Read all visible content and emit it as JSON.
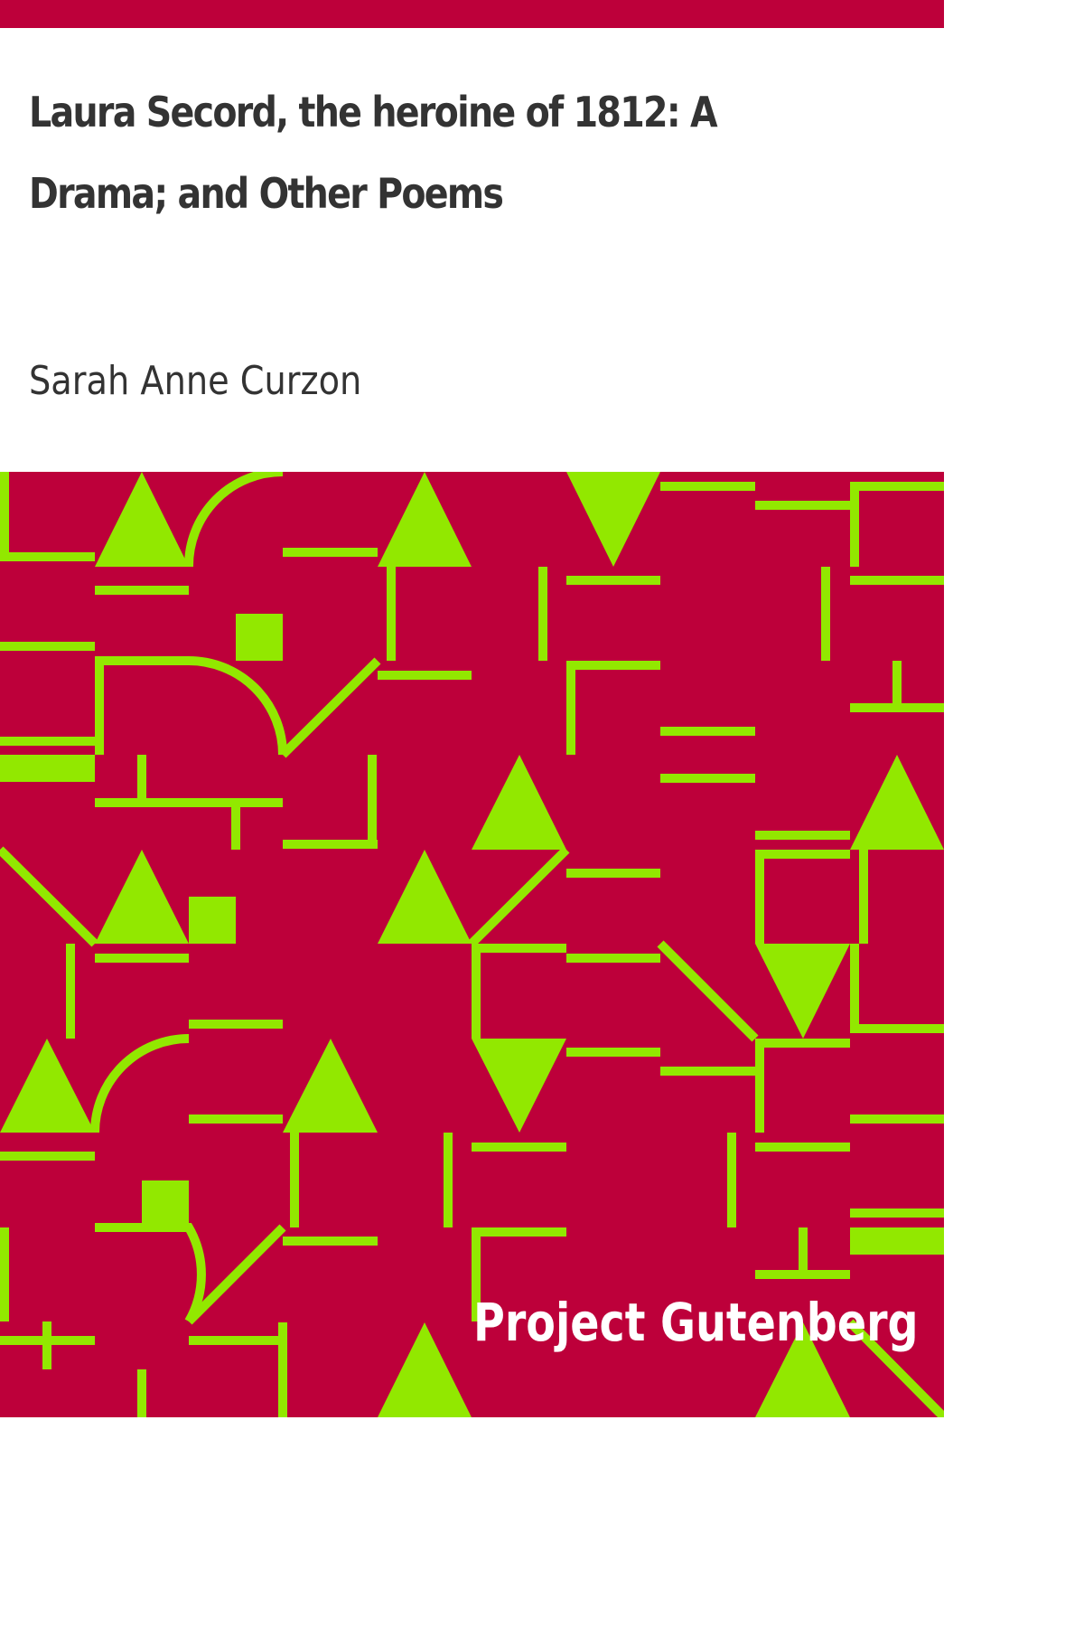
{
  "book": {
    "title": "Laura Secord, the heroine of 1812: A Drama; and Other Poems",
    "author": "Sarah Anne Curzon",
    "publisher": "Project Gutenberg"
  },
  "colors": {
    "accent": "#bd003a",
    "pattern": "#92e800",
    "text": "#333333",
    "background": "#ffffff"
  }
}
